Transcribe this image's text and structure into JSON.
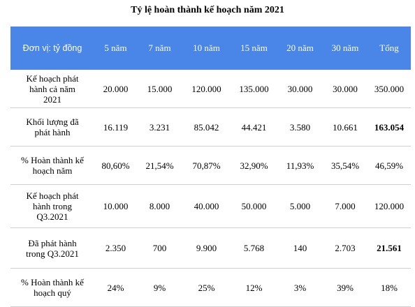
{
  "title": "Tỷ lệ hoàn thành kế hoạch năm 2021",
  "table": {
    "header": [
      "Đơn vị: tỷ đồng",
      "5 năm",
      "7 năm",
      "10 năm",
      "15 năm",
      "20 năm",
      "30 năm",
      "Tổng"
    ],
    "rows": [
      [
        "Kế hoạch phát hành cả năm 2021",
        "20.000",
        "15.000",
        "120.000",
        "135.000",
        "30.000",
        "30.000",
        "350.000"
      ],
      [
        "Khối lượng đã phát hành",
        "16.119",
        "3.231",
        "85.042",
        "44.421",
        "3.580",
        "10.661",
        "163.054"
      ],
      [
        "% Hoàn thành kế hoạch năm",
        "80,60%",
        "21,54%",
        "70,87%",
        "32,90%",
        "11,93%",
        "35,54%",
        "46,59%"
      ],
      [
        "Kế hoạch phát hành trong Q3.2021",
        "10.000",
        "8.000",
        "40.000",
        "50.000",
        "5.000",
        "7.000",
        "120.000"
      ],
      [
        "Đã phát hành trong Q3.2021",
        "2.350",
        "700",
        "9.900",
        "5.768",
        "140",
        "2.703",
        "21.561"
      ],
      [
        "% Hoàn thành kế hoạch quý",
        "24%",
        "9%",
        "25%",
        "12%",
        "3%",
        "39%",
        "18%"
      ]
    ]
  }
}
